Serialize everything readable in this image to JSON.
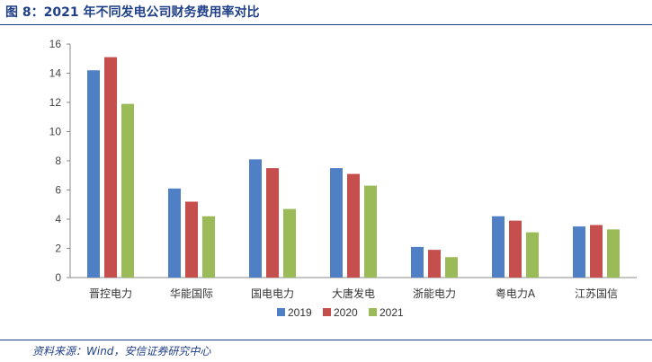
{
  "header": {
    "title": "图 8：2021 年不同发电公司财务费用率对比"
  },
  "footer": {
    "source": "资料来源：Wind，安信证券研究中心"
  },
  "chart_data": {
    "type": "bar",
    "title": "",
    "xlabel": "",
    "ylabel": "",
    "ylim": [
      0,
      16
    ],
    "yticks": [
      0,
      2,
      4,
      6,
      8,
      10,
      12,
      14,
      16
    ],
    "grid": false,
    "legend_position": "bottom",
    "categories": [
      "晋控电力",
      "华能国际",
      "国电电力",
      "大唐发电",
      "浙能电力",
      "粤电力A",
      "江苏国信"
    ],
    "series": [
      {
        "name": "2019",
        "color": "#4f7fc4",
        "values": [
          14.2,
          6.1,
          8.1,
          7.5,
          2.1,
          4.2,
          3.5
        ]
      },
      {
        "name": "2020",
        "color": "#c44f4d",
        "values": [
          15.1,
          5.2,
          7.5,
          7.1,
          1.9,
          3.9,
          3.6
        ]
      },
      {
        "name": "2021",
        "color": "#9bbb59",
        "values": [
          11.9,
          4.2,
          4.7,
          6.3,
          1.4,
          3.1,
          3.3
        ]
      }
    ]
  }
}
